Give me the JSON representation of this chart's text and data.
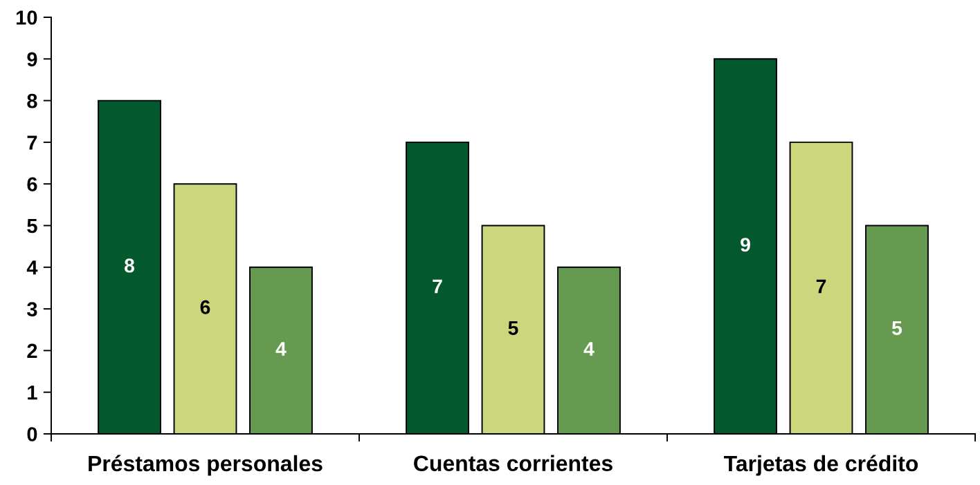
{
  "chart_data": {
    "type": "bar",
    "categories": [
      "Préstamos personales",
      "Cuentas corrientes",
      "Tarjetas de crédito"
    ],
    "series": [
      {
        "color": "#03582d",
        "values": [
          8,
          7,
          9
        ]
      },
      {
        "color": "#ccd67c",
        "values": [
          6,
          5,
          7
        ]
      },
      {
        "color": "#669a51",
        "values": [
          4,
          4,
          5
        ]
      }
    ],
    "ylim": [
      0,
      10
    ],
    "yticks": [
      0,
      1,
      2,
      3,
      4,
      5,
      6,
      7,
      8,
      9,
      10
    ],
    "data_labels": true,
    "grid": false
  }
}
